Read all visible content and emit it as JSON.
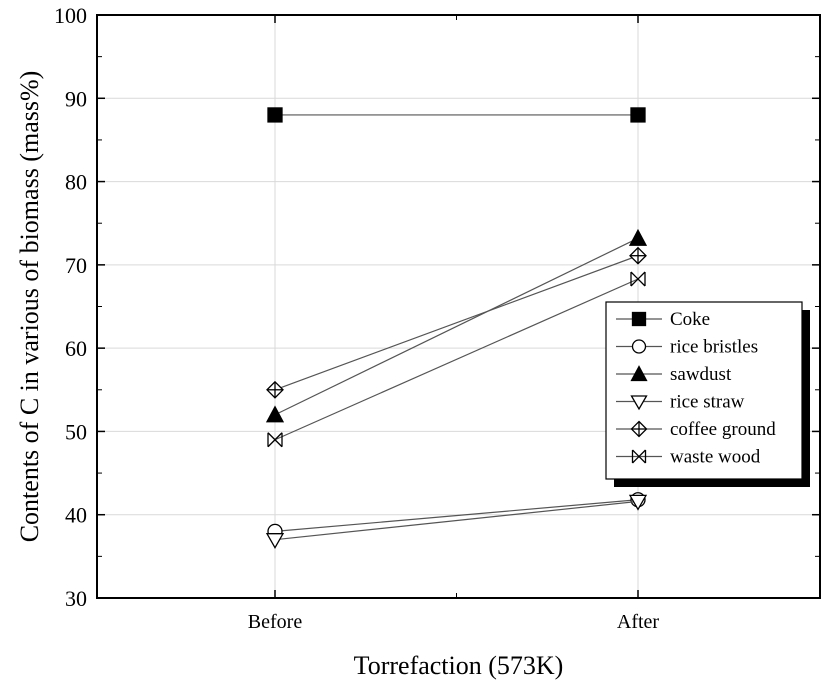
{
  "chart_data": {
    "type": "line",
    "categories": [
      "Before",
      "After"
    ],
    "xlabel": "Torrefaction (573K)",
    "ylabel": "Contents of C in various of biomass (mass%)",
    "ylim": [
      30,
      100
    ],
    "yticks": [
      30,
      40,
      50,
      60,
      70,
      80,
      90,
      100
    ],
    "grid": true,
    "legend_position": "right",
    "series": [
      {
        "name": "Coke",
        "values": [
          88,
          88
        ],
        "marker": "filled-square",
        "color": "#000000"
      },
      {
        "name": "rice bristles",
        "values": [
          38,
          41.8
        ],
        "marker": "open-circle",
        "color": "#000000"
      },
      {
        "name": "sawdust",
        "values": [
          52,
          73.2
        ],
        "marker": "filled-triangle-up",
        "color": "#000000"
      },
      {
        "name": "rice straw",
        "values": [
          37,
          41.6
        ],
        "marker": "open-triangle-down",
        "color": "#000000"
      },
      {
        "name": "coffee ground",
        "values": [
          55,
          71.1
        ],
        "marker": "crossed-diamond",
        "color": "#000000"
      },
      {
        "name": "waste wood",
        "values": [
          49,
          68.3
        ],
        "marker": "crossed-box",
        "color": "#000000"
      }
    ]
  }
}
